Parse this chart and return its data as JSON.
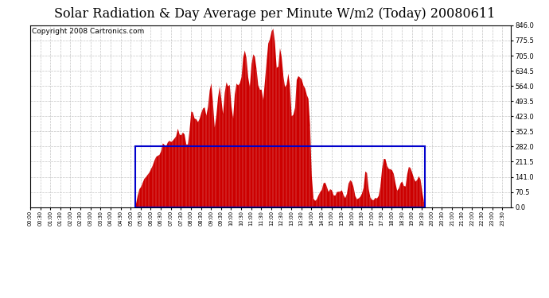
{
  "title": "Solar Radiation & Day Average per Minute W/m2 (Today) 20080611",
  "copyright": "Copyright 2008 Cartronics.com",
  "bg_color": "#ffffff",
  "fill_color": "#cc0000",
  "box_color": "#0000cc",
  "grid_color": "#bbbbbb",
  "ymin": 0.0,
  "ymax": 846.0,
  "yticks": [
    0.0,
    70.5,
    141.0,
    211.5,
    282.0,
    352.5,
    423.0,
    493.5,
    564.0,
    634.5,
    705.0,
    775.5,
    846.0
  ],
  "day_avg": 282.0,
  "sunrise_idx": 63,
  "sunset_idx": 236,
  "title_fontsize": 11.5,
  "copyright_fontsize": 6.5
}
